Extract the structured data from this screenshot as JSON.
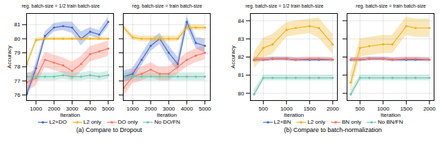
{
  "chart_data": [
    {
      "type": "line",
      "title": "reg. batch-size = 1/2 train batch-size",
      "xlabel": "Iteration",
      "ylabel": "Accuracy",
      "caption": "(a) Compare to Dropout",
      "x": [
        500,
        1000,
        1500,
        2000,
        2500,
        3000,
        3500,
        4000,
        4500,
        5000
      ],
      "xlim": [
        480,
        5300
      ],
      "ylim": [
        75.6,
        81.8
      ],
      "xticks": [
        1000,
        2000,
        3000,
        4000,
        5000
      ],
      "yticks": [
        76,
        77,
        78,
        79,
        80,
        81
      ],
      "grid": true,
      "legend": "bottom",
      "marker": "circle",
      "series": [
        {
          "name": "L2+DO",
          "values": [
            76.1,
            77.9,
            80.2,
            80.8,
            80.9,
            80.8,
            80.0,
            80.5,
            80.3,
            81.2
          ],
          "errors": [
            0.35,
            0.4,
            0.3,
            0.3,
            0.3,
            0.4,
            0.5,
            0.3,
            0.3,
            0.35
          ]
        },
        {
          "name": "L2 only",
          "values": [
            78.2,
            79.9,
            80.0,
            80.0,
            80.0,
            80.0,
            80.0,
            80.0,
            80.0,
            80.0
          ],
          "errors": [
            0.2,
            0.15,
            0.12,
            0.12,
            0.12,
            0.12,
            0.12,
            0.12,
            0.12,
            0.12
          ]
        },
        {
          "name": "DO only",
          "values": [
            76.9,
            77.2,
            78.5,
            78.3,
            78.1,
            77.7,
            78.2,
            78.9,
            79.1,
            79.3
          ],
          "errors": [
            0.65,
            0.55,
            0.55,
            0.55,
            0.55,
            0.65,
            0.55,
            0.55,
            0.55,
            0.55
          ]
        },
        {
          "name": "No DO/FN",
          "values": [
            77.3,
            77.3,
            77.3,
            77.3,
            77.4,
            77.3,
            77.3,
            77.4,
            77.3,
            77.4
          ],
          "errors": [
            0.28,
            0.28,
            0.28,
            0.28,
            0.28,
            0.28,
            0.28,
            0.28,
            0.28,
            0.28
          ]
        }
      ]
    },
    {
      "type": "line",
      "title": "reg. batch-size = train batch-size",
      "xlabel": "Iteration",
      "x": [
        500,
        1000,
        1500,
        2000,
        2500,
        3000,
        3500,
        4000,
        4500,
        5000
      ],
      "xlim": [
        480,
        5300
      ],
      "ylim": [
        75.6,
        81.8
      ],
      "xticks": [
        1000,
        2000,
        3000,
        4000,
        5000
      ],
      "yticks": [
        76,
        77,
        78,
        79,
        80,
        81
      ],
      "grid": true,
      "tick_labels": "x",
      "marker": "circle",
      "series": [
        {
          "values": [
            77.3,
            77.5,
            78.5,
            79.5,
            80.0,
            79.0,
            78.2,
            81.2,
            79.7,
            79.5
          ],
          "errors": [
            0.4,
            0.4,
            0.4,
            0.4,
            0.4,
            0.5,
            0.5,
            0.4,
            0.4,
            0.5
          ]
        },
        {
          "values": [
            80.8,
            80.1,
            80.0,
            80.0,
            80.0,
            80.0,
            80.0,
            80.8,
            80.8,
            80.8
          ],
          "errors": [
            0.2,
            0.2,
            0.2,
            0.2,
            0.2,
            0.2,
            0.2,
            0.2,
            0.2,
            0.2
          ]
        },
        {
          "values": [
            76.5,
            77.3,
            77.5,
            77.8,
            77.5,
            77.5,
            78.0,
            78.5,
            78.8,
            79.0
          ],
          "errors": [
            0.6,
            0.5,
            0.5,
            0.5,
            0.5,
            0.5,
            0.5,
            0.5,
            0.5,
            0.5
          ]
        },
        {
          "values": [
            77.3,
            77.3,
            77.3,
            77.3,
            77.3,
            77.3,
            77.3,
            77.3,
            77.3,
            77.3
          ],
          "errors": [
            0.28,
            0.28,
            0.28,
            0.28,
            0.28,
            0.28,
            0.28,
            0.28,
            0.28,
            0.28
          ]
        }
      ]
    },
    {
      "type": "line",
      "title": "reg. batch-size = 1/2 train batch-size",
      "xlabel": "Iteration",
      "ylabel": "Accuracy",
      "caption": "(b) Compare to batch-normalization",
      "x": [
        300,
        500,
        700,
        1000,
        1200,
        1500,
        1700,
        2000
      ],
      "xlim": [
        220,
        2100
      ],
      "ylim": [
        79.6,
        84.4
      ],
      "xticks": [
        500,
        1000,
        1500,
        2000
      ],
      "yticks": [
        80,
        81,
        82,
        83,
        84
      ],
      "grid": true,
      "legend": "bottom",
      "marker": "circle",
      "series": [
        {
          "name": "L2+BN",
          "values": [
            81.85,
            81.85,
            81.9,
            81.9,
            81.85,
            81.85,
            81.85,
            81.85
          ],
          "errors": [
            0.12,
            0.1,
            0.1,
            0.1,
            0.1,
            0.1,
            0.1,
            0.1
          ]
        },
        {
          "name": "L2 only",
          "values": [
            81.8,
            82.5,
            82.7,
            83.5,
            83.6,
            83.7,
            83.6,
            82.7
          ],
          "errors": [
            0.45,
            0.55,
            0.55,
            0.4,
            0.4,
            0.4,
            0.55,
            0.55
          ]
        },
        {
          "name": "BN only",
          "values": [
            81.85,
            81.85,
            81.9,
            81.9,
            81.85,
            81.9,
            81.9,
            81.85
          ],
          "errors": [
            0.1,
            0.1,
            0.1,
            0.1,
            0.1,
            0.1,
            0.1,
            0.1
          ]
        },
        {
          "name": "No BN/FN",
          "values": [
            79.95,
            80.85,
            80.85,
            80.85,
            80.85,
            80.85,
            80.85,
            80.85
          ],
          "errors": [
            0.22,
            0.15,
            0.15,
            0.15,
            0.15,
            0.15,
            0.15,
            0.15
          ]
        }
      ]
    },
    {
      "type": "line",
      "title": "reg. batch-size = train batch-size",
      "xlabel": "Iteration",
      "x": [
        300,
        500,
        700,
        1000,
        1200,
        1500,
        1700,
        2000
      ],
      "xlim": [
        220,
        2100
      ],
      "ylim": [
        79.6,
        84.4
      ],
      "xticks": [
        500,
        1000,
        1500,
        2000
      ],
      "yticks": [
        80,
        81,
        82,
        83,
        84
      ],
      "grid": true,
      "tick_labels": "x",
      "marker": "circle",
      "series": [
        {
          "values": [
            81.85,
            81.85,
            81.9,
            81.9,
            81.85,
            81.85,
            81.85,
            81.85
          ],
          "errors": [
            0.12,
            0.1,
            0.1,
            0.1,
            0.1,
            0.1,
            0.1,
            0.1
          ]
        },
        {
          "values": [
            80.6,
            82.5,
            82.6,
            82.7,
            82.7,
            83.7,
            83.6,
            83.6
          ],
          "errors": [
            0.5,
            0.5,
            0.5,
            0.5,
            0.5,
            0.5,
            0.5,
            0.5
          ]
        },
        {
          "values": [
            81.85,
            81.85,
            81.9,
            81.9,
            81.85,
            81.9,
            81.9,
            81.85
          ],
          "errors": [
            0.1,
            0.1,
            0.1,
            0.1,
            0.1,
            0.1,
            0.1,
            0.1
          ]
        },
        {
          "values": [
            79.95,
            80.85,
            80.85,
            80.85,
            80.85,
            80.85,
            80.85,
            80.85
          ],
          "errors": [
            0.22,
            0.15,
            0.15,
            0.15,
            0.15,
            0.15,
            0.15,
            0.15
          ]
        }
      ]
    }
  ]
}
